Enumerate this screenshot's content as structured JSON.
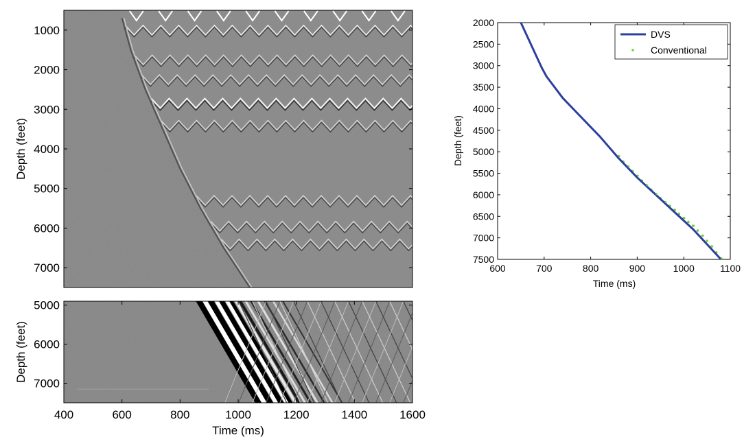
{
  "chart_data": [
    {
      "type": "heatmap",
      "panel": "top-left seismic record",
      "xlim": [
        400,
        1600
      ],
      "ylim": [
        7500,
        500
      ],
      "xticks": [],
      "yticks": [
        1000,
        2000,
        3000,
        4000,
        5000,
        6000,
        7000
      ],
      "ylabel": "Depth (feet)",
      "first_break": {
        "depth": [
          700,
          1500,
          2500,
          3500,
          4500,
          5500,
          6500,
          7500
        ],
        "time": [
          600,
          630,
          680,
          740,
          800,
          870,
          950,
          1040
        ]
      },
      "reflector_depths": [
        1000,
        1750,
        2250,
        2850,
        3400,
        5300,
        5950,
        6400
      ]
    },
    {
      "type": "heatmap",
      "panel": "bottom-left seismic record",
      "xlim": [
        400,
        1600
      ],
      "ylim": [
        7500,
        4900
      ],
      "xticks": [
        400,
        600,
        800,
        1000,
        1200,
        1400,
        1600
      ],
      "yticks": [
        5000,
        6000,
        7000
      ],
      "xlabel": "Time (ms)",
      "ylabel": "Depth (feet)",
      "first_break": {
        "depth": [
          4900,
          7500
        ],
        "time": [
          860,
          1075
        ]
      }
    },
    {
      "type": "line",
      "panel": "right time-depth curve",
      "xlim": [
        600,
        1100
      ],
      "ylim": [
        7500,
        2000
      ],
      "xticks": [
        600,
        700,
        800,
        900,
        1000,
        1100
      ],
      "yticks": [
        2000,
        2500,
        3000,
        3500,
        4000,
        4500,
        5000,
        5500,
        6000,
        6500,
        7000,
        7500
      ],
      "xlabel": "Time (ms)",
      "ylabel": "Depth (feet)",
      "legend_position": "top-right",
      "series": [
        {
          "name": "DVS",
          "color": "#2b3f9e",
          "style": "line",
          "x": [
            650,
            665,
            680,
            695,
            705,
            740,
            780,
            820,
            860,
            900,
            940,
            980,
            1020,
            1050,
            1080
          ],
          "y": [
            2000,
            2350,
            2700,
            3050,
            3250,
            3750,
            4200,
            4650,
            5150,
            5600,
            6000,
            6400,
            6800,
            7150,
            7500
          ]
        },
        {
          "name": "Conventional",
          "color": "#6fd23a",
          "style": "points",
          "x": [
            860,
            870,
            880,
            890,
            900,
            910,
            920,
            930,
            940,
            950,
            960,
            970,
            980,
            990,
            1000,
            1010,
            1020,
            1030,
            1040,
            1050,
            1060,
            1070,
            1080
          ],
          "y": [
            5100,
            5230,
            5340,
            5450,
            5560,
            5670,
            5780,
            5880,
            5980,
            6080,
            6170,
            6260,
            6350,
            6440,
            6540,
            6630,
            6720,
            6830,
            6950,
            7070,
            7200,
            7340,
            7480
          ]
        }
      ]
    }
  ]
}
